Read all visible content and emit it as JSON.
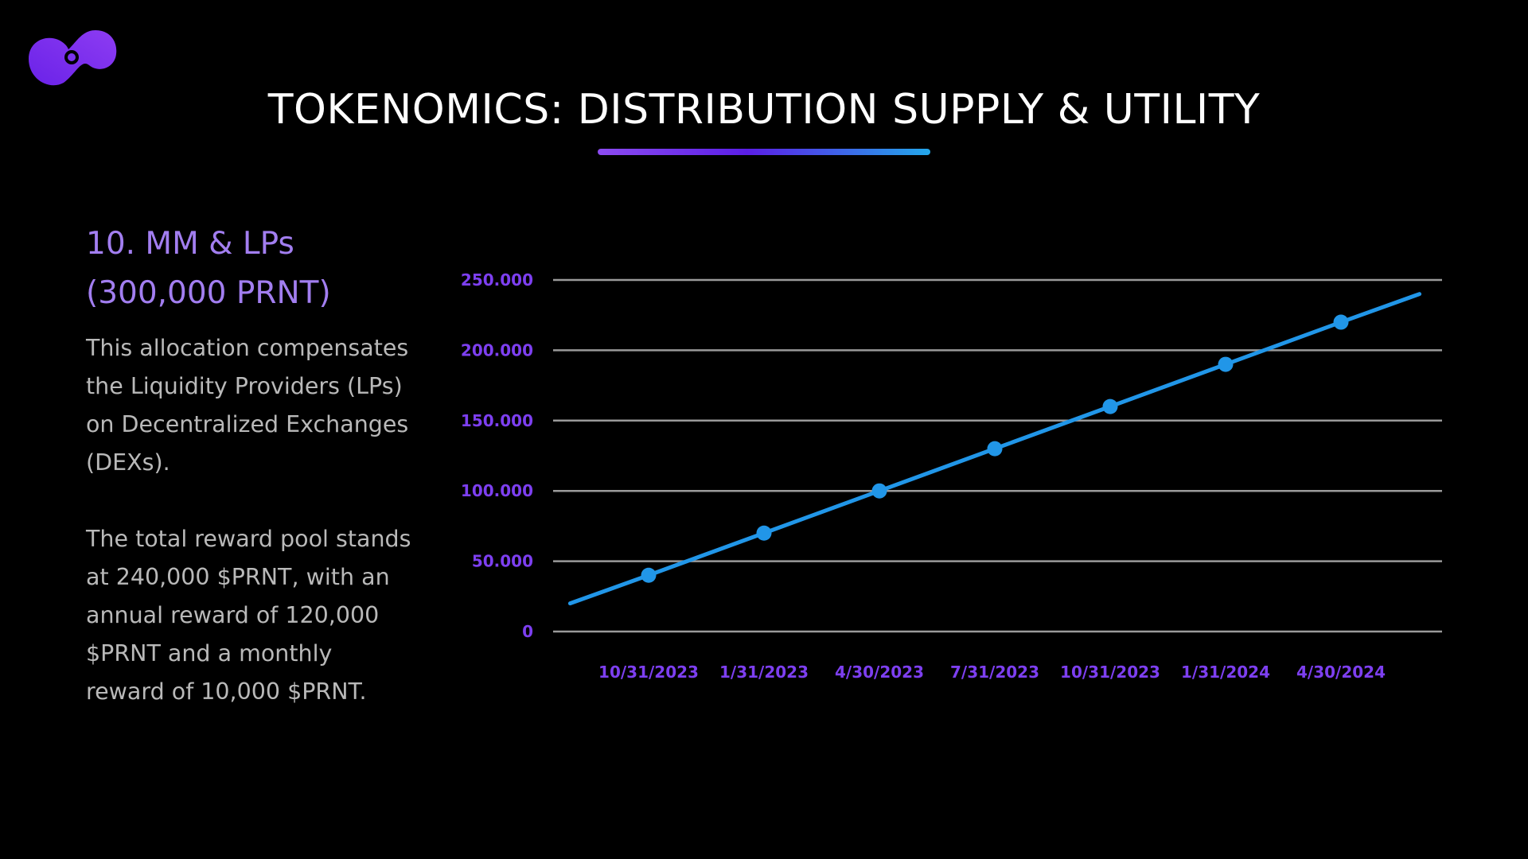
{
  "header": {
    "title": "TOKENOMICS: DISTRIBUTION SUPPLY & UTILITY",
    "logo_icon": "swirl-logo-icon"
  },
  "section": {
    "heading_line1": "10. MM & LPs",
    "heading_line2": "(300,000 PRNT)",
    "paragraph1": "This allocation compensates the Liquidity Providers (LPs) on Decentralized Exchanges (DEXs).",
    "paragraph2": "The total reward pool stands at 240,000 $PRNT, with an annual reward of 120,000 $PRNT and a monthly reward of 10,000 $PRNT."
  },
  "colors": {
    "background": "#000000",
    "accent_purple": "#7d3ff0",
    "heading_purple": "#a27ef0",
    "line_blue": "#2196e8",
    "gridline": "#9a9a9a"
  },
  "chart_data": {
    "type": "line",
    "x": [
      "10/31/2023",
      "1/31/2023",
      "4/30/2023",
      "7/31/2023",
      "10/31/2023",
      "1/31/2024",
      "4/30/2024"
    ],
    "series": [
      {
        "values": [
          40000,
          70000,
          100000,
          130000,
          160000,
          190000,
          220000
        ]
      }
    ],
    "line_extends_start": 20000,
    "line_extends_end": 240000,
    "yticks": [
      "0",
      "50.000",
      "100.000",
      "150.000",
      "200.000",
      "250.000"
    ],
    "ylim": [
      0,
      250000
    ],
    "grid": true,
    "legend": "none",
    "title": "",
    "xlabel": "",
    "ylabel": ""
  }
}
